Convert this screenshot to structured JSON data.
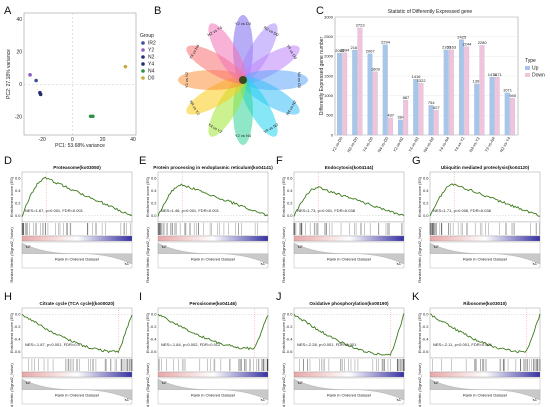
{
  "panel_labels": [
    "A",
    "B",
    "C",
    "D",
    "E",
    "F",
    "G",
    "H",
    "I",
    "J",
    "K"
  ],
  "chart_data": [
    {
      "id": "A",
      "type": "scatter",
      "xlabel": "PC1: 53.68% variance",
      "ylabel": "PC2: 27.18% variance",
      "xlim": [
        -32,
        42
      ],
      "ylim": [
        -31,
        44
      ],
      "xticks": [
        -20,
        0,
        20,
        40
      ],
      "yticks": [
        -20,
        0,
        20,
        40
      ],
      "legend_title": "Group",
      "series": [
        {
          "name": "IR2",
          "color": "#3d4fa0",
          "x": [
            -24
          ],
          "y": [
            2.5
          ]
        },
        {
          "name": "Y2",
          "color": "#8e5fc0",
          "x": [
            -28
          ],
          "y": [
            6
          ]
        },
        {
          "name": "N2",
          "color": "#26317a",
          "x": [
            -21.5
          ],
          "y": [
            -5
          ]
        },
        {
          "name": "Y4",
          "color": "#222b66",
          "x": [
            -21
          ],
          "y": [
            -6
          ]
        },
        {
          "name": "N4",
          "color": "#2f8f46",
          "x": [
            12,
            13.5
          ],
          "y": [
            -19.5,
            -19.5
          ]
        },
        {
          "name": "D0",
          "color": "#c8a83a",
          "x": [
            35
          ],
          "y": [
            11
          ]
        }
      ]
    },
    {
      "id": "B",
      "type": "venn",
      "petals": [
        {
          "label": "Y2 vs D0",
          "color": "#7b68ee"
        },
        {
          "label": "N2 vs D0",
          "color": "#a78bfa"
        },
        {
          "label": "Y4 vs D0",
          "color": "#c084fc"
        },
        {
          "label": "N4 vs D0",
          "color": "#60a5fa"
        },
        {
          "label": "N4 vs N2",
          "color": "#38bdf8"
        },
        {
          "label": "Y4 vs N2",
          "color": "#22d3ee"
        },
        {
          "label": "Y2 vs N4",
          "color": "#34d399"
        },
        {
          "label": "Y4 vs Y2",
          "color": "#a3e635"
        },
        {
          "label": "N4 vs Y2",
          "color": "#facc15"
        },
        {
          "label": "Y2 vs N2",
          "color": "#fb923c"
        },
        {
          "label": "Y4 vs N4",
          "color": "#f87171"
        },
        {
          "label": "N2 vs Y4",
          "color": "#f472b6"
        }
      ]
    },
    {
      "id": "C",
      "type": "bar",
      "title": "Statistic of Differently Expressed gene",
      "ylabel": "Differently Expressed gene number",
      "legend_title": "Type",
      "categories": [
        "Y2-vs-D0",
        "N2-vs-D0",
        "Y4-vs-D0",
        "N4-vs-D0",
        "Y2-vs-N2",
        "Y4-vs-N2",
        "N4-vs-N2",
        "Y4-vs-N4",
        "Y4-vs-Y2",
        "N4-vs-Y2",
        "Y2-vs-N4",
        "N2-vs-Y4"
      ],
      "ylim": [
        0,
        3000
      ],
      "series": [
        {
          "name": "Up",
          "color": "#a8c6ea",
          "values": [
            2085,
            2161,
            2067,
            2294,
            384,
            1416,
            754,
            2163,
            2425,
            1300,
            1471,
            1071
          ]
        },
        {
          "name": "Down",
          "color": "#f2c4dc",
          "values": [
            2094,
            2723,
            1609,
            437,
            887,
            1322,
            627,
            2163,
            2244,
            2280,
            1471,
            940
          ]
        }
      ],
      "bar_labels": [
        [
          "2085",
          "2094"
        ],
        [
          "2161",
          "2723"
        ],
        [
          "2067",
          "1609"
        ],
        [
          "2294",
          "437"
        ],
        [
          "384",
          "887"
        ],
        [
          "1416",
          "1322"
        ],
        [
          "754",
          "627"
        ],
        [
          "2163",
          "2163"
        ],
        [
          "2425",
          "2244"
        ],
        [
          "1300",
          "2280"
        ],
        [
          "1471",
          "1471"
        ],
        [
          "1071",
          "940"
        ]
      ]
    },
    {
      "id": "D",
      "type": "line",
      "title": "Proteasome(ko03050)",
      "ylabel": "Enrichment score (ES)",
      "stat": "NES=1.67, p<0.001, FDR<0.001",
      "shape": "pos",
      "peak": 0.6,
      "xlabel": "Rank in Ordered Dataset"
    },
    {
      "id": "E",
      "type": "line",
      "title": "Protein processing in endoplasmic reticulum(ko04141)",
      "ylabel": "Enrichment score (ES)",
      "stat": "NES=1.46, p<0.001, FDR<0.001",
      "shape": "pos",
      "peak": 0.5,
      "xlabel": "Rank in Ordered Dataset"
    },
    {
      "id": "F",
      "type": "line",
      "title": "Endocytosis(ko04144)",
      "ylabel": "Enrichment score (ES)",
      "stat": "NES=1.73, p=0.001, FDR=0.038",
      "shape": "pos",
      "peak": 0.45,
      "xlabel": "Rank in Ordered Dataset"
    },
    {
      "id": "G",
      "type": "line",
      "title": "Ubiquitin mediated proteolysis(ko04120)",
      "ylabel": "Enrichment score (ES)",
      "stat": "NES=1.71, p=0.006, FDR=0.036",
      "shape": "pos",
      "peak": 0.5,
      "xlabel": "Rank in Ordered Dataset"
    },
    {
      "id": "H",
      "type": "line",
      "title": "Citrate cycle (TCA cycle)(ko00020)",
      "ylabel": "Enrichment score (ES)",
      "stat": "NES=-1.87, p<0.001, FDR<0.0",
      "shape": "neg",
      "peak": -0.6,
      "xlabel": "Rank in Ordered Dataset"
    },
    {
      "id": "I",
      "type": "line",
      "title": "Peroxisome(ko04146)",
      "ylabel": "Enrichment score (ES)",
      "stat": "NES=-1.84, p=0.002, FDR=0.012",
      "shape": "neg",
      "peak": -0.55,
      "xlabel": "Rank in Ordered Dataset"
    },
    {
      "id": "J",
      "type": "line",
      "title": "Oxidative phosphorylation(ko00190)",
      "ylabel": "Enrichment score (ES)",
      "stat": "NES=-2.28, p<0.001, FDR<0.001",
      "shape": "neg",
      "peak": -0.65,
      "xlabel": "Rank in Ordered Dataset"
    },
    {
      "id": "K",
      "type": "line",
      "title": "Ribosome(ko03010)",
      "ylabel": "Enrichment score (ES)",
      "stat": "NES=-2.11, p<0.001, FDR<0.001",
      "shape": "neg",
      "peak": -0.6,
      "xlabel": "Rank in Ordered Dataset"
    }
  ],
  "gsea_common": {
    "bottom_ylabel": "Ranked Metric (Signal2_Noise)",
    "curve_color": "#3d7a1d",
    "pos_corner": "'s2'",
    "neg_corner": "'s1'"
  }
}
